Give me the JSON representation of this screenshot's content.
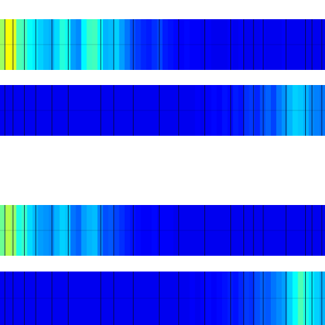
{
  "chart_data": [
    {
      "type": "heatmap",
      "colormap": "jet",
      "range": [
        0,
        1
      ],
      "grid": false,
      "values": [
        0.53,
        0.62,
        0.6,
        0.45,
        0.44,
        0.38,
        0.36,
        0.33,
        0.31,
        0.3,
        0.34,
        0.41,
        0.39,
        0.28,
        0.26,
        0.37,
        0.43,
        0.44,
        0.38,
        0.3,
        0.31,
        0.33,
        0.28,
        0.24,
        0.2,
        0.18,
        0.16,
        0.15,
        0.17,
        0.19,
        0.15,
        0.14,
        0.13,
        0.12,
        0.13,
        0.12,
        0.12,
        0.11,
        0.12,
        0.11,
        0.11,
        0.11,
        0.12,
        0.11,
        0.12,
        0.11,
        0.11,
        0.11,
        0.12,
        0.11,
        0.11,
        0.11,
        0.12,
        0.11,
        0.11,
        0.11,
        0.11,
        0.11,
        0.11,
        0.11
      ],
      "separators": [
        0.015,
        0.04,
        0.075,
        0.11,
        0.16,
        0.21,
        0.31,
        0.35,
        0.41,
        0.49,
        0.55,
        0.63,
        0.71,
        0.75,
        0.78,
        0.81,
        0.88,
        0.94,
        0.96,
        0.99
      ]
    },
    {
      "type": "heatmap",
      "colormap": "jet",
      "range": [
        0,
        1
      ],
      "grid": false,
      "values": [
        0.11,
        0.11,
        0.11,
        0.11,
        0.11,
        0.11,
        0.11,
        0.11,
        0.11,
        0.11,
        0.11,
        0.11,
        0.11,
        0.11,
        0.11,
        0.11,
        0.11,
        0.11,
        0.11,
        0.11,
        0.11,
        0.11,
        0.11,
        0.11,
        0.11,
        0.11,
        0.11,
        0.11,
        0.11,
        0.11,
        0.11,
        0.11,
        0.11,
        0.11,
        0.11,
        0.11,
        0.12,
        0.11,
        0.12,
        0.13,
        0.12,
        0.14,
        0.13,
        0.15,
        0.14,
        0.17,
        0.18,
        0.16,
        0.2,
        0.22,
        0.19,
        0.24,
        0.27,
        0.3,
        0.33,
        0.32,
        0.3,
        0.26,
        0.25,
        0.24
      ],
      "separators": [
        0.015,
        0.04,
        0.075,
        0.11,
        0.16,
        0.21,
        0.31,
        0.35,
        0.41,
        0.49,
        0.55,
        0.63,
        0.71,
        0.75,
        0.78,
        0.81,
        0.88,
        0.94,
        0.96,
        0.99
      ]
    },
    {
      "type": "heatmap",
      "colormap": "jet",
      "range": [
        0,
        1
      ],
      "grid": false,
      "values": [
        0.48,
        0.55,
        0.52,
        0.4,
        0.43,
        0.34,
        0.31,
        0.28,
        0.27,
        0.26,
        0.3,
        0.33,
        0.32,
        0.24,
        0.22,
        0.28,
        0.3,
        0.31,
        0.25,
        0.2,
        0.21,
        0.19,
        0.17,
        0.15,
        0.14,
        0.13,
        0.12,
        0.12,
        0.13,
        0.12,
        0.12,
        0.12,
        0.11,
        0.11,
        0.11,
        0.11,
        0.11,
        0.11,
        0.11,
        0.11,
        0.11,
        0.11,
        0.11,
        0.11,
        0.11,
        0.11,
        0.11,
        0.11,
        0.11,
        0.11,
        0.11,
        0.11,
        0.11,
        0.11,
        0.11,
        0.11,
        0.11,
        0.11,
        0.11,
        0.11
      ],
      "separators": [
        0.015,
        0.04,
        0.075,
        0.11,
        0.16,
        0.21,
        0.31,
        0.35,
        0.41,
        0.49,
        0.55,
        0.63,
        0.71,
        0.75,
        0.78,
        0.81,
        0.88,
        0.94,
        0.96,
        0.99
      ]
    },
    {
      "type": "heatmap",
      "colormap": "jet",
      "range": [
        0,
        1
      ],
      "grid": false,
      "values": [
        0.11,
        0.11,
        0.11,
        0.11,
        0.11,
        0.11,
        0.11,
        0.11,
        0.11,
        0.11,
        0.11,
        0.11,
        0.11,
        0.11,
        0.11,
        0.11,
        0.11,
        0.11,
        0.11,
        0.11,
        0.11,
        0.11,
        0.11,
        0.11,
        0.11,
        0.11,
        0.11,
        0.11,
        0.11,
        0.11,
        0.11,
        0.11,
        0.11,
        0.11,
        0.11,
        0.12,
        0.11,
        0.12,
        0.13,
        0.12,
        0.13,
        0.14,
        0.15,
        0.14,
        0.16,
        0.18,
        0.17,
        0.2,
        0.22,
        0.21,
        0.24,
        0.26,
        0.28,
        0.33,
        0.38,
        0.45,
        0.4,
        0.36,
        0.33,
        0.3
      ],
      "separators": [
        0.015,
        0.04,
        0.075,
        0.11,
        0.16,
        0.21,
        0.31,
        0.35,
        0.41,
        0.49,
        0.55,
        0.63,
        0.71,
        0.75,
        0.78,
        0.81,
        0.88,
        0.94,
        0.96,
        0.99
      ]
    }
  ]
}
